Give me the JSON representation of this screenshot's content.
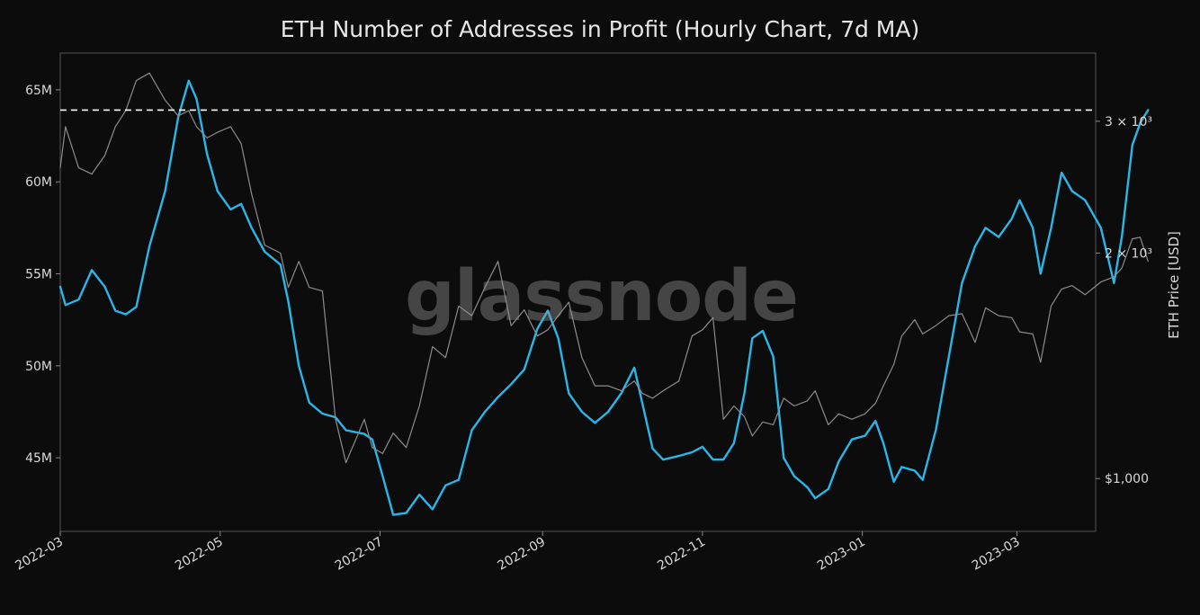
{
  "chart_data": {
    "type": "line",
    "title": "ETH Number of Addresses in Profit (Hourly Chart, 7d MA)",
    "watermark": "glassnode",
    "xlabel": "",
    "ylabel_left": "",
    "ylabel_right": "ETH Price [USD]",
    "x_ticks": [
      "2022-03",
      "2022-05",
      "2022-07",
      "2022-09",
      "2022-11",
      "2023-01",
      "2023-03"
    ],
    "x_range": [
      "2022-03-01",
      "2023-03-31"
    ],
    "left_ylim": [
      41,
      67
    ],
    "left_ticks": [
      {
        "value": 45,
        "label": "45M"
      },
      {
        "value": 50,
        "label": "50M"
      },
      {
        "value": 55,
        "label": "55M"
      },
      {
        "value": 60,
        "label": "60M"
      },
      {
        "value": 65,
        "label": "65M"
      }
    ],
    "right_scale": "log",
    "right_ylim": [
      850,
      3700
    ],
    "right_ticks": [
      {
        "value": 1000,
        "label": "$1,000"
      },
      {
        "value": 2000,
        "label": "2 × 10³"
      },
      {
        "value": 3000,
        "label": "3 × 10³"
      }
    ],
    "reference_line": {
      "value": 63.9,
      "axis": "left",
      "style": "dashed",
      "color": "#ffffff"
    },
    "colors": {
      "addresses": "#29b6e8",
      "price": "#8c8c8c",
      "background": "#0c0c0c",
      "axes": "#555555",
      "text": "#d9d9d9"
    },
    "series": [
      {
        "axis": "left",
        "color": "#29b6e8",
        "points": [
          [
            "2022-03-01",
            54.3
          ],
          [
            "2022-03-03",
            53.3
          ],
          [
            "2022-03-08",
            53.6
          ],
          [
            "2022-03-13",
            55.2
          ],
          [
            "2022-03-18",
            54.3
          ],
          [
            "2022-03-22",
            53.0
          ],
          [
            "2022-03-26",
            52.8
          ],
          [
            "2022-03-30",
            53.2
          ],
          [
            "2022-04-04",
            56.5
          ],
          [
            "2022-04-10",
            59.5
          ],
          [
            "2022-04-15",
            63.5
          ],
          [
            "2022-04-19",
            65.5
          ],
          [
            "2022-04-22",
            64.5
          ],
          [
            "2022-04-26",
            61.5
          ],
          [
            "2022-04-30",
            59.5
          ],
          [
            "2022-05-05",
            58.5
          ],
          [
            "2022-05-09",
            58.8
          ],
          [
            "2022-05-13",
            57.5
          ],
          [
            "2022-05-18",
            56.2
          ],
          [
            "2022-05-24",
            55.5
          ],
          [
            "2022-05-27",
            53.5
          ],
          [
            "2022-05-31",
            50.0
          ],
          [
            "2022-06-04",
            48.0
          ],
          [
            "2022-06-09",
            47.4
          ],
          [
            "2022-06-14",
            47.2
          ],
          [
            "2022-06-18",
            46.5
          ],
          [
            "2022-06-25",
            46.3
          ],
          [
            "2022-06-28",
            46.0
          ],
          [
            "2022-07-02",
            44.0
          ],
          [
            "2022-07-06",
            41.9
          ],
          [
            "2022-07-11",
            42.0
          ],
          [
            "2022-07-16",
            43.0
          ],
          [
            "2022-07-21",
            42.2
          ],
          [
            "2022-07-26",
            43.5
          ],
          [
            "2022-07-31",
            43.8
          ],
          [
            "2022-08-05",
            46.5
          ],
          [
            "2022-08-10",
            47.5
          ],
          [
            "2022-08-15",
            48.3
          ],
          [
            "2022-08-20",
            49.0
          ],
          [
            "2022-08-25",
            49.8
          ],
          [
            "2022-08-30",
            52.0
          ],
          [
            "2022-09-03",
            53.0
          ],
          [
            "2022-09-07",
            51.5
          ],
          [
            "2022-09-11",
            48.5
          ],
          [
            "2022-09-16",
            47.5
          ],
          [
            "2022-09-21",
            46.9
          ],
          [
            "2022-09-26",
            47.5
          ],
          [
            "2022-10-01",
            48.5
          ],
          [
            "2022-10-06",
            49.9
          ],
          [
            "2022-10-09",
            48.0
          ],
          [
            "2022-10-13",
            45.5
          ],
          [
            "2022-10-17",
            44.9
          ],
          [
            "2022-10-23",
            45.1
          ],
          [
            "2022-10-28",
            45.3
          ],
          [
            "2022-11-01",
            45.6
          ],
          [
            "2022-11-05",
            44.9
          ],
          [
            "2022-11-09",
            44.9
          ],
          [
            "2022-11-13",
            45.8
          ],
          [
            "2022-11-17",
            48.5
          ],
          [
            "2022-11-20",
            51.5
          ],
          [
            "2022-11-24",
            51.9
          ],
          [
            "2022-11-28",
            50.5
          ],
          [
            "2022-12-02",
            45.0
          ],
          [
            "2022-12-06",
            44.0
          ],
          [
            "2022-12-11",
            43.4
          ],
          [
            "2022-12-14",
            42.8
          ],
          [
            "2022-12-19",
            43.3
          ],
          [
            "2022-12-23",
            44.8
          ],
          [
            "2022-12-28",
            46.0
          ],
          [
            "2023-01-02",
            46.2
          ],
          [
            "2023-01-06",
            47.0
          ],
          [
            "2023-01-09",
            45.8
          ],
          [
            "2023-01-13",
            43.7
          ],
          [
            "2023-01-16",
            44.5
          ],
          [
            "2023-01-21",
            44.3
          ],
          [
            "2023-01-24",
            43.8
          ],
          [
            "2023-01-29",
            46.5
          ],
          [
            "2023-02-03",
            50.5
          ],
          [
            "2023-02-08",
            54.5
          ],
          [
            "2023-02-13",
            56.5
          ],
          [
            "2023-02-17",
            57.5
          ],
          [
            "2023-02-22",
            57.0
          ],
          [
            "2023-02-27",
            58.0
          ],
          [
            "2023-03-02",
            59.0
          ],
          [
            "2023-03-07",
            57.5
          ],
          [
            "2023-03-10",
            55.0
          ],
          [
            "2023-03-14",
            57.5
          ],
          [
            "2023-03-18",
            60.5
          ],
          [
            "2023-03-22",
            59.5
          ],
          [
            "2023-03-27",
            59.0
          ],
          [
            "2023-04-02",
            57.5
          ],
          [
            "2023-04-07",
            54.5
          ],
          [
            "2023-04-10",
            57.0
          ],
          [
            "2023-04-14",
            62.0
          ],
          [
            "2023-04-17",
            63.2
          ],
          [
            "2023-04-20",
            63.9
          ]
        ]
      },
      {
        "axis": "right",
        "color": "#8c8c8c",
        "points": [
          [
            "2022-03-01",
            2600
          ],
          [
            "2022-03-03",
            2950
          ],
          [
            "2022-03-08",
            2600
          ],
          [
            "2022-03-13",
            2550
          ],
          [
            "2022-03-18",
            2700
          ],
          [
            "2022-03-22",
            2950
          ],
          [
            "2022-03-26",
            3100
          ],
          [
            "2022-03-30",
            3400
          ],
          [
            "2022-04-04",
            3480
          ],
          [
            "2022-04-10",
            3200
          ],
          [
            "2022-04-15",
            3050
          ],
          [
            "2022-04-19",
            3100
          ],
          [
            "2022-04-22",
            2950
          ],
          [
            "2022-04-26",
            2850
          ],
          [
            "2022-04-30",
            2900
          ],
          [
            "2022-05-05",
            2950
          ],
          [
            "2022-05-09",
            2800
          ],
          [
            "2022-05-13",
            2400
          ],
          [
            "2022-05-18",
            2050
          ],
          [
            "2022-05-24",
            2000
          ],
          [
            "2022-05-27",
            1800
          ],
          [
            "2022-05-31",
            1950
          ],
          [
            "2022-06-04",
            1800
          ],
          [
            "2022-06-09",
            1780
          ],
          [
            "2022-06-14",
            1200
          ],
          [
            "2022-06-18",
            1050
          ],
          [
            "2022-06-25",
            1200
          ],
          [
            "2022-06-28",
            1100
          ],
          [
            "2022-07-02",
            1080
          ],
          [
            "2022-07-06",
            1150
          ],
          [
            "2022-07-11",
            1100
          ],
          [
            "2022-07-16",
            1250
          ],
          [
            "2022-07-21",
            1500
          ],
          [
            "2022-07-26",
            1450
          ],
          [
            "2022-07-31",
            1700
          ],
          [
            "2022-08-05",
            1650
          ],
          [
            "2022-08-10",
            1800
          ],
          [
            "2022-08-15",
            1950
          ],
          [
            "2022-08-20",
            1600
          ],
          [
            "2022-08-25",
            1680
          ],
          [
            "2022-08-30",
            1550
          ],
          [
            "2022-09-03",
            1580
          ],
          [
            "2022-09-07",
            1650
          ],
          [
            "2022-09-11",
            1720
          ],
          [
            "2022-09-16",
            1450
          ],
          [
            "2022-09-21",
            1330
          ],
          [
            "2022-09-26",
            1330
          ],
          [
            "2022-10-01",
            1310
          ],
          [
            "2022-10-06",
            1350
          ],
          [
            "2022-10-09",
            1300
          ],
          [
            "2022-10-13",
            1280
          ],
          [
            "2022-10-17",
            1310
          ],
          [
            "2022-10-23",
            1350
          ],
          [
            "2022-10-28",
            1550
          ],
          [
            "2022-11-01",
            1580
          ],
          [
            "2022-11-05",
            1640
          ],
          [
            "2022-11-09",
            1200
          ],
          [
            "2022-11-13",
            1250
          ],
          [
            "2022-11-17",
            1210
          ],
          [
            "2022-11-20",
            1140
          ],
          [
            "2022-11-24",
            1190
          ],
          [
            "2022-11-28",
            1180
          ],
          [
            "2022-12-02",
            1280
          ],
          [
            "2022-12-06",
            1250
          ],
          [
            "2022-12-11",
            1270
          ],
          [
            "2022-12-14",
            1310
          ],
          [
            "2022-12-19",
            1180
          ],
          [
            "2022-12-23",
            1220
          ],
          [
            "2022-12-28",
            1200
          ],
          [
            "2023-01-02",
            1220
          ],
          [
            "2023-01-06",
            1260
          ],
          [
            "2023-01-09",
            1330
          ],
          [
            "2023-01-13",
            1420
          ],
          [
            "2023-01-16",
            1550
          ],
          [
            "2023-01-21",
            1630
          ],
          [
            "2023-01-24",
            1560
          ],
          [
            "2023-01-29",
            1600
          ],
          [
            "2023-02-03",
            1650
          ],
          [
            "2023-02-08",
            1660
          ],
          [
            "2023-02-13",
            1520
          ],
          [
            "2023-02-17",
            1690
          ],
          [
            "2023-02-22",
            1650
          ],
          [
            "2023-02-27",
            1640
          ],
          [
            "2023-03-02",
            1570
          ],
          [
            "2023-03-07",
            1560
          ],
          [
            "2023-03-10",
            1430
          ],
          [
            "2023-03-14",
            1700
          ],
          [
            "2023-03-18",
            1790
          ],
          [
            "2023-03-22",
            1810
          ],
          [
            "2023-03-27",
            1760
          ],
          [
            "2023-04-02",
            1830
          ],
          [
            "2023-04-07",
            1860
          ],
          [
            "2023-04-10",
            1910
          ],
          [
            "2023-04-14",
            2090
          ],
          [
            "2023-04-17",
            2100
          ],
          [
            "2023-04-20",
            1950
          ]
        ]
      }
    ]
  }
}
